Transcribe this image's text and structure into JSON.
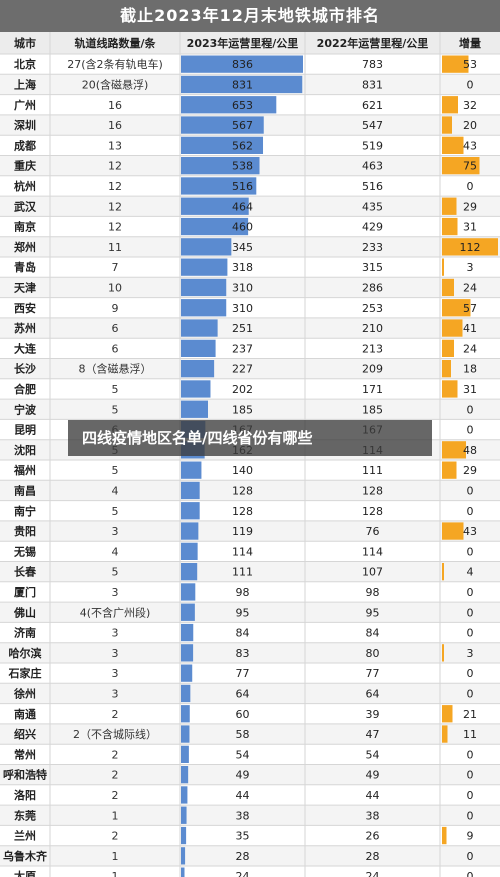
{
  "overlay_caption": "四线疫情地区名单/四线省份有哪些",
  "colors": {
    "banner": "#6d6d6d",
    "bar_2023": "#5b8bd0",
    "bar_increase": "#f5a623",
    "grid": "#d6d6d6",
    "row_alt": "#f4f4f4"
  },
  "chart_data": {
    "type": "table",
    "title": "截止2023年12月末地铁城市排名",
    "columns": [
      "城市",
      "轨道线路数量/条",
      "2023年运营里程/公里",
      "2022年运营里程/公里",
      "增量"
    ],
    "bar_columns": [
      "2023年运营里程/公里",
      "增量"
    ],
    "categories": [
      "北京",
      "上海",
      "广州",
      "深圳",
      "成都",
      "重庆",
      "杭州",
      "武汉",
      "南京",
      "郑州",
      "青岛",
      "天津",
      "西安",
      "苏州",
      "大连",
      "长沙",
      "合肥",
      "宁波",
      "昆明",
      "沈阳",
      "福州",
      "南昌",
      "南宁",
      "贵阳",
      "无锡",
      "长春",
      "厦门",
      "佛山",
      "济南",
      "哈尔滨",
      "石家庄",
      "徐州",
      "南通",
      "绍兴",
      "常州",
      "呼和浩特",
      "洛阳",
      "东莞",
      "兰州",
      "乌鲁木齐",
      "太原"
    ],
    "lines": [
      "27(含2条有轨电车)",
      "20(含磁悬浮)",
      "16",
      "16",
      "13",
      "12",
      "12",
      "12",
      "12",
      "11",
      "7",
      "10",
      "9",
      "6",
      "6",
      "8（含磁悬浮）",
      "5",
      "5",
      "6",
      "5",
      "5",
      "4",
      "5",
      "3",
      "4",
      "5",
      "3",
      "4(不含广州段)",
      "3",
      "3",
      "3",
      "3",
      "2",
      "2（不含城际线）",
      "2",
      "2",
      "2",
      "1",
      "2",
      "1",
      "1"
    ],
    "series": [
      {
        "name": "2023年运营里程/公里",
        "values": [
          836,
          831,
          653,
          567,
          562,
          538,
          516,
          464,
          460,
          345,
          318,
          310,
          310,
          251,
          237,
          227,
          202,
          185,
          167,
          162,
          140,
          128,
          128,
          119,
          114,
          111,
          98,
          95,
          84,
          83,
          77,
          64,
          60,
          58,
          54,
          49,
          44,
          38,
          35,
          28,
          24
        ]
      },
      {
        "name": "2022年运营里程/公里",
        "values": [
          783,
          831,
          621,
          547,
          519,
          463,
          516,
          435,
          429,
          233,
          315,
          286,
          253,
          210,
          213,
          209,
          171,
          185,
          167,
          114,
          111,
          128,
          128,
          76,
          114,
          107,
          98,
          95,
          84,
          80,
          77,
          64,
          39,
          47,
          54,
          49,
          44,
          38,
          26,
          28,
          24
        ]
      },
      {
        "name": "增量",
        "values": [
          53,
          0,
          32,
          20,
          43,
          75,
          0,
          29,
          31,
          112,
          3,
          24,
          57,
          41,
          24,
          18,
          31,
          0,
          0,
          48,
          29,
          0,
          0,
          43,
          0,
          4,
          0,
          0,
          0,
          3,
          0,
          0,
          21,
          11,
          0,
          0,
          0,
          0,
          9,
          0,
          0
        ]
      }
    ],
    "xlim_2023": [
      0,
      836
    ],
    "xlim_increase": [
      0,
      112
    ]
  }
}
